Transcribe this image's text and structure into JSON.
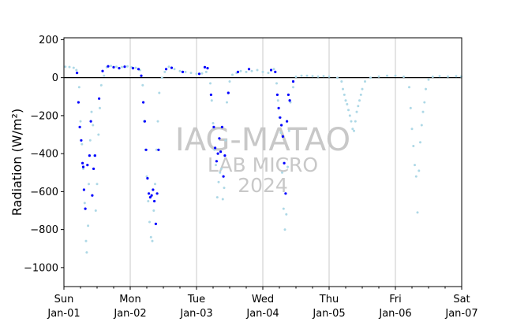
{
  "chart_data": {
    "type": "scatter",
    "ylabel": "Radiation (W/m²)",
    "ylim": [
      -1100,
      210
    ],
    "xlim": [
      "2023-01-01T00:00",
      "2023-01-07T00:00"
    ],
    "yticks": [
      -1000,
      -800,
      -600,
      -400,
      -200,
      0,
      200
    ],
    "xticks": [
      {
        "day": "Sun",
        "date": "Jan-01",
        "at": "2023-01-01T00:00"
      },
      {
        "day": "Mon",
        "date": "Jan-02",
        "at": "2023-01-02T00:00"
      },
      {
        "day": "Tue",
        "date": "Jan-03",
        "at": "2023-01-03T00:00"
      },
      {
        "day": "Wed",
        "date": "Jan-04",
        "at": "2023-01-04T00:00"
      },
      {
        "day": "Thu",
        "date": "Jan-05",
        "at": "2023-01-05T00:00"
      },
      {
        "day": "Fri",
        "date": "Jan-06",
        "at": "2023-01-06T00:00"
      },
      {
        "day": "Sat",
        "date": "Jan-07",
        "at": "2023-01-07T00:00"
      }
    ],
    "vertical_grid": true,
    "zero_line": true,
    "watermark": [
      "IAG-MATAO",
      "LAB MICRO",
      "2024"
    ],
    "series": [
      {
        "color": "#add8e6",
        "points": [
          [
            "2023-01-01T00:30",
            58
          ],
          [
            "2023-01-01T02:00",
            56
          ],
          [
            "2023-01-01T03:30",
            52
          ],
          [
            "2023-01-01T04:30",
            40
          ],
          [
            "2023-01-01T05:30",
            -50
          ],
          [
            "2023-01-01T06:00",
            -230
          ],
          [
            "2023-01-01T06:30",
            -350
          ],
          [
            "2023-01-01T07:00",
            -480
          ],
          [
            "2023-01-01T07:30",
            -660
          ],
          [
            "2023-01-01T08:00",
            -860
          ],
          [
            "2023-01-01T08:15",
            -920
          ],
          [
            "2023-01-01T08:45",
            -780
          ],
          [
            "2023-01-01T09:00",
            -560
          ],
          [
            "2023-01-01T09:30",
            -330
          ],
          [
            "2023-01-01T10:00",
            -180
          ],
          [
            "2023-01-01T10:30",
            -250
          ],
          [
            "2023-01-01T11:00",
            -410
          ],
          [
            "2023-01-01T11:30",
            -700
          ],
          [
            "2023-01-01T12:00",
            -560
          ],
          [
            "2023-01-01T12:30",
            -300
          ],
          [
            "2023-01-01T13:00",
            -160
          ],
          [
            "2023-01-01T13:30",
            -40
          ],
          [
            "2023-01-01T14:30",
            10
          ],
          [
            "2023-01-01T15:30",
            55
          ],
          [
            "2023-01-01T17:00",
            62
          ],
          [
            "2023-01-01T19:00",
            58
          ],
          [
            "2023-01-01T21:00",
            56
          ],
          [
            "2023-01-01T23:00",
            60
          ],
          [
            "2023-01-02T00:30",
            55
          ],
          [
            "2023-01-02T02:00",
            52
          ],
          [
            "2023-01-02T03:30",
            40
          ],
          [
            "2023-01-02T04:30",
            -40
          ],
          [
            "2023-01-02T05:00",
            -230
          ],
          [
            "2023-01-02T05:30",
            -380
          ],
          [
            "2023-01-02T06:00",
            -520
          ],
          [
            "2023-01-02T06:30",
            -650
          ],
          [
            "2023-01-02T07:00",
            -760
          ],
          [
            "2023-01-02T07:30",
            -840
          ],
          [
            "2023-01-02T08:00",
            -860
          ],
          [
            "2023-01-02T08:30",
            -700
          ],
          [
            "2023-01-02T09:00",
            -560
          ],
          [
            "2023-01-02T09:30",
            -380
          ],
          [
            "2023-01-02T10:00",
            -230
          ],
          [
            "2023-01-02T10:30",
            -80
          ],
          [
            "2023-01-02T11:30",
            0
          ],
          [
            "2023-01-02T12:30",
            30
          ],
          [
            "2023-01-02T14:00",
            58
          ],
          [
            "2023-01-02T16:00",
            45
          ],
          [
            "2023-01-02T18:00",
            35
          ],
          [
            "2023-01-02T20:00",
            30
          ],
          [
            "2023-01-02T22:00",
            25
          ],
          [
            "2023-01-03T00:00",
            20
          ],
          [
            "2023-01-03T02:00",
            22
          ],
          [
            "2023-01-03T03:30",
            30
          ],
          [
            "2023-01-03T05:00",
            -30
          ],
          [
            "2023-01-03T05:30",
            -120
          ],
          [
            "2023-01-03T06:00",
            -240
          ],
          [
            "2023-01-03T06:30",
            -380
          ],
          [
            "2023-01-03T07:00",
            -460
          ],
          [
            "2023-01-03T07:30",
            -630
          ],
          [
            "2023-01-03T08:00",
            -550
          ],
          [
            "2023-01-03T08:30",
            -500
          ],
          [
            "2023-01-03T09:00",
            -480
          ],
          [
            "2023-01-03T09:30",
            -640
          ],
          [
            "2023-01-03T10:00",
            -580
          ],
          [
            "2023-01-03T10:30",
            -330
          ],
          [
            "2023-01-03T11:00",
            -130
          ],
          [
            "2023-01-03T12:00",
            -20
          ],
          [
            "2023-01-03T13:00",
            15
          ],
          [
            "2023-01-03T14:30",
            25
          ],
          [
            "2023-01-03T16:00",
            35
          ],
          [
            "2023-01-03T18:00",
            30
          ],
          [
            "2023-01-03T20:00",
            35
          ],
          [
            "2023-01-03T22:00",
            40
          ],
          [
            "2023-01-04T00:00",
            30
          ],
          [
            "2023-01-04T02:00",
            25
          ],
          [
            "2023-01-04T04:00",
            45
          ],
          [
            "2023-01-04T05:00",
            -30
          ],
          [
            "2023-01-04T05:30",
            -120
          ],
          [
            "2023-01-04T06:00",
            -210
          ],
          [
            "2023-01-04T06:30",
            -290
          ],
          [
            "2023-01-04T07:00",
            -500
          ],
          [
            "2023-01-04T07:30",
            -690
          ],
          [
            "2023-01-04T08:00",
            -800
          ],
          [
            "2023-01-04T08:30",
            -720
          ],
          [
            "2023-01-04T09:00",
            -470
          ],
          [
            "2023-01-04T09:30",
            -280
          ],
          [
            "2023-01-04T10:00",
            -130
          ],
          [
            "2023-01-04T11:00",
            -50
          ],
          [
            "2023-01-04T12:00",
            5
          ],
          [
            "2023-01-04T14:00",
            10
          ],
          [
            "2023-01-04T16:00",
            10
          ],
          [
            "2023-01-04T18:00",
            8
          ],
          [
            "2023-01-04T20:00",
            6
          ],
          [
            "2023-01-04T22:00",
            8
          ],
          [
            "2023-01-05T00:00",
            6
          ],
          [
            "2023-01-05T03:00",
            0
          ],
          [
            "2023-01-05T04:30",
            -20
          ],
          [
            "2023-01-05T05:00",
            -60
          ],
          [
            "2023-01-05T05:30",
            -90
          ],
          [
            "2023-01-05T06:00",
            -120
          ],
          [
            "2023-01-05T06:30",
            -140
          ],
          [
            "2023-01-05T07:00",
            -170
          ],
          [
            "2023-01-05T07:30",
            -200
          ],
          [
            "2023-01-05T08:00",
            -230
          ],
          [
            "2023-01-05T08:30",
            -270
          ],
          [
            "2023-01-05T09:00",
            -280
          ],
          [
            "2023-01-05T09:30",
            -230
          ],
          [
            "2023-01-05T10:00",
            -180
          ],
          [
            "2023-01-05T10:30",
            -150
          ],
          [
            "2023-01-05T11:00",
            -120
          ],
          [
            "2023-01-05T11:30",
            -90
          ],
          [
            "2023-01-05T12:00",
            -60
          ],
          [
            "2023-01-05T13:00",
            -20
          ],
          [
            "2023-01-05T15:00",
            0
          ],
          [
            "2023-01-05T18:00",
            6
          ],
          [
            "2023-01-05T21:00",
            10
          ],
          [
            "2023-01-06T00:00",
            10
          ],
          [
            "2023-01-06T03:00",
            5
          ],
          [
            "2023-01-06T05:00",
            -50
          ],
          [
            "2023-01-06T05:30",
            -160
          ],
          [
            "2023-01-06T06:00",
            -270
          ],
          [
            "2023-01-06T06:30",
            -360
          ],
          [
            "2023-01-06T07:00",
            -460
          ],
          [
            "2023-01-06T07:30",
            -520
          ],
          [
            "2023-01-06T08:00",
            -710
          ],
          [
            "2023-01-06T08:30",
            -490
          ],
          [
            "2023-01-06T09:00",
            -340
          ],
          [
            "2023-01-06T09:30",
            -250
          ],
          [
            "2023-01-06T10:00",
            -180
          ],
          [
            "2023-01-06T10:30",
            -130
          ],
          [
            "2023-01-06T11:00",
            -60
          ],
          [
            "2023-01-06T12:00",
            -10
          ],
          [
            "2023-01-06T13:30",
            5
          ],
          [
            "2023-01-06T16:00",
            8
          ],
          [
            "2023-01-06T19:00",
            6
          ],
          [
            "2023-01-06T22:00",
            8
          ],
          [
            "2023-01-06T23:50",
            6
          ]
        ]
      },
      {
        "color": "#0000ff",
        "points": [
          [
            "2023-01-01T04:45",
            25
          ],
          [
            "2023-01-01T05:15",
            -130
          ],
          [
            "2023-01-01T05:45",
            -260
          ],
          [
            "2023-01-01T06:15",
            -330
          ],
          [
            "2023-01-01T06:45",
            -450
          ],
          [
            "2023-01-01T07:00",
            -470
          ],
          [
            "2023-01-01T07:15",
            -590
          ],
          [
            "2023-01-01T07:45",
            -690
          ],
          [
            "2023-01-01T08:30",
            -460
          ],
          [
            "2023-01-01T09:15",
            -410
          ],
          [
            "2023-01-01T09:45",
            -230
          ],
          [
            "2023-01-01T10:15",
            -620
          ],
          [
            "2023-01-01T10:45",
            -480
          ],
          [
            "2023-01-01T11:15",
            -410
          ],
          [
            "2023-01-01T12:45",
            -110
          ],
          [
            "2023-01-01T14:00",
            35
          ],
          [
            "2023-01-01T16:00",
            60
          ],
          [
            "2023-01-01T18:00",
            55
          ],
          [
            "2023-01-01T20:00",
            50
          ],
          [
            "2023-01-01T22:00",
            58
          ],
          [
            "2023-01-02T01:00",
            50
          ],
          [
            "2023-01-02T03:00",
            45
          ],
          [
            "2023-01-02T04:00",
            10
          ],
          [
            "2023-01-02T04:45",
            -130
          ],
          [
            "2023-01-02T05:15",
            -230
          ],
          [
            "2023-01-02T05:45",
            -380
          ],
          [
            "2023-01-02T06:15",
            -530
          ],
          [
            "2023-01-02T06:45",
            -610
          ],
          [
            "2023-01-02T07:15",
            -630
          ],
          [
            "2023-01-02T07:45",
            -620
          ],
          [
            "2023-01-02T08:15",
            -590
          ],
          [
            "2023-01-02T08:45",
            -650
          ],
          [
            "2023-01-02T09:15",
            -770
          ],
          [
            "2023-01-02T09:45",
            -610
          ],
          [
            "2023-01-02T10:15",
            -380
          ],
          [
            "2023-01-02T13:00",
            45
          ],
          [
            "2023-01-02T15:00",
            52
          ],
          [
            "2023-01-02T19:00",
            30
          ],
          [
            "2023-01-03T01:00",
            20
          ],
          [
            "2023-01-03T03:00",
            55
          ],
          [
            "2023-01-03T04:00",
            50
          ],
          [
            "2023-01-03T05:15",
            -90
          ],
          [
            "2023-01-03T06:15",
            -260
          ],
          [
            "2023-01-03T06:45",
            -370
          ],
          [
            "2023-01-03T07:15",
            -440
          ],
          [
            "2023-01-03T07:45",
            -400
          ],
          [
            "2023-01-03T08:15",
            -320
          ],
          [
            "2023-01-03T08:45",
            -390
          ],
          [
            "2023-01-03T09:15",
            -260
          ],
          [
            "2023-01-03T09:45",
            -520
          ],
          [
            "2023-01-03T10:15",
            -410
          ],
          [
            "2023-01-03T11:30",
            -80
          ],
          [
            "2023-01-03T15:00",
            30
          ],
          [
            "2023-01-03T19:00",
            45
          ],
          [
            "2023-01-04T03:00",
            40
          ],
          [
            "2023-01-04T04:30",
            30
          ],
          [
            "2023-01-04T05:15",
            -90
          ],
          [
            "2023-01-04T05:45",
            -160
          ],
          [
            "2023-01-04T06:15",
            -210
          ],
          [
            "2023-01-04T06:45",
            -250
          ],
          [
            "2023-01-04T07:15",
            -310
          ],
          [
            "2023-01-04T07:45",
            -450
          ],
          [
            "2023-01-04T08:15",
            -610
          ],
          [
            "2023-01-04T08:45",
            -230
          ],
          [
            "2023-01-04T09:15",
            -90
          ],
          [
            "2023-01-04T09:45",
            -120
          ],
          [
            "2023-01-04T11:00",
            -20
          ]
        ]
      }
    ]
  }
}
